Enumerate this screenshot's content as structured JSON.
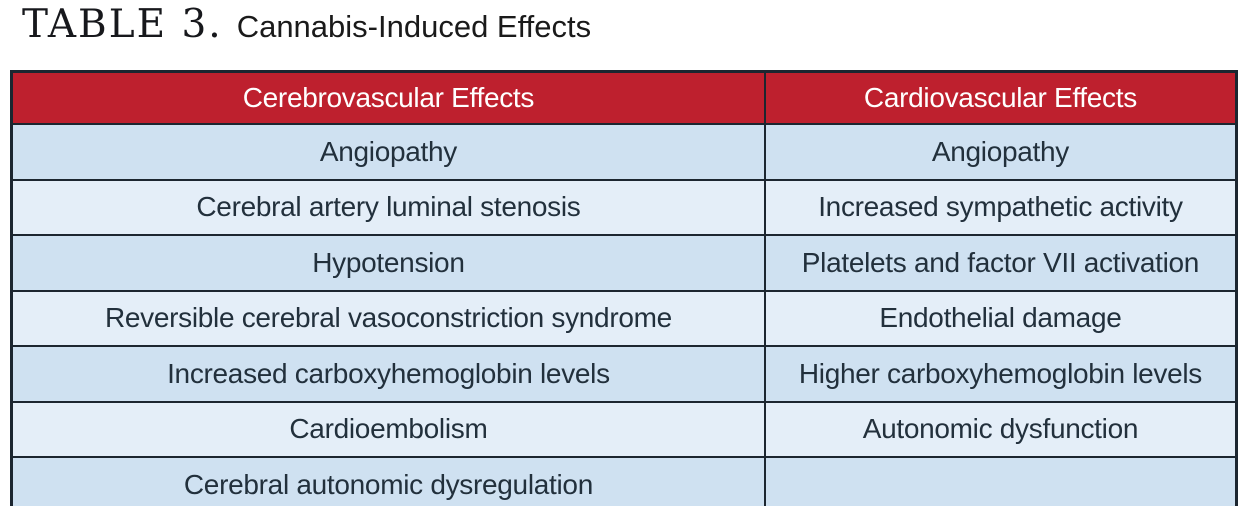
{
  "title": {
    "label": "TABLE 3.",
    "caption": "Cannabis-Induced Effects"
  },
  "table": {
    "headers": [
      "Cerebrovascular Effects",
      "Cardiovascular Effects"
    ],
    "rows": [
      [
        "Angiopathy",
        "Angiopathy"
      ],
      [
        "Cerebral artery luminal stenosis",
        "Increased sympathetic activity"
      ],
      [
        "Hypotension",
        "Platelets and factor VII activation"
      ],
      [
        "Reversible cerebral vasoconstriction syndrome",
        "Endothelial damage"
      ],
      [
        "Increased carboxyhemoglobin levels",
        "Higher carboxyhemoglobin levels"
      ],
      [
        "Cardioembolism",
        "Autonomic dysfunction"
      ],
      [
        "Cerebral autonomic dysregulation",
        ""
      ]
    ],
    "colors": {
      "header_bg": "#be202e",
      "header_text": "#ffffff",
      "row_odd_bg": "#cfe1f1",
      "row_even_bg": "#e4eef8",
      "border": "#1c2630",
      "body_text": "#22303c"
    }
  }
}
